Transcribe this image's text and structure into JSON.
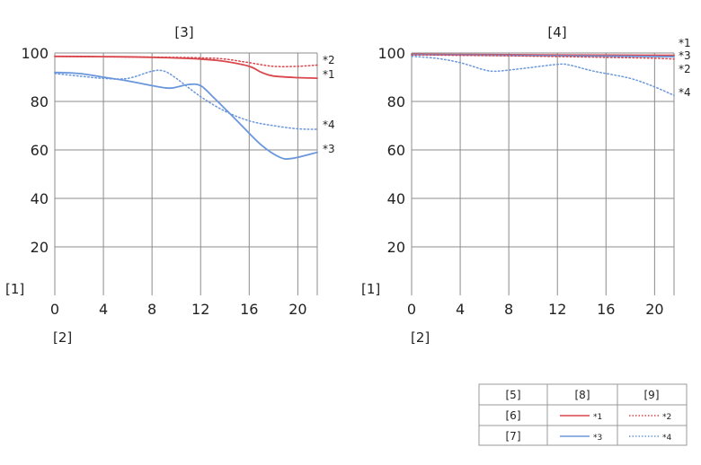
{
  "chart_data": [
    {
      "type": "line",
      "title": "[3]",
      "ylabel": "[1]",
      "xlabel": "[2]",
      "xlim": [
        0,
        21.6
      ],
      "ylim": [
        0,
        100
      ],
      "x_ticks": [
        "0",
        "4",
        "8",
        "12",
        "16",
        "20"
      ],
      "y_ticks": [
        "20",
        "40",
        "60",
        "80",
        "100"
      ],
      "grid": true,
      "series": [
        {
          "name": "*2",
          "color": "#d9474d",
          "style": "dotted",
          "points": [
            [
              0,
              98.6
            ],
            [
              4,
              98.4
            ],
            [
              8,
              98.3
            ],
            [
              12,
              98
            ],
            [
              14,
              97.5
            ],
            [
              16,
              96
            ],
            [
              18,
              94.5
            ],
            [
              20,
              94.5
            ],
            [
              21.6,
              95
            ]
          ]
        },
        {
          "name": "*1",
          "color": "#d9474d",
          "style": "solid",
          "points": [
            [
              0,
              98.6
            ],
            [
              4,
              98.5
            ],
            [
              8,
              98.2
            ],
            [
              12,
              97.5
            ],
            [
              14,
              96.5
            ],
            [
              16,
              94.5
            ],
            [
              17,
              92
            ],
            [
              18,
              90.5
            ],
            [
              20,
              89.8
            ],
            [
              21.6,
              89.6
            ]
          ]
        },
        {
          "name": "*4",
          "color": "#6a97dc",
          "style": "dotted",
          "points": [
            [
              0,
              91.5
            ],
            [
              2,
              90.5
            ],
            [
              4,
              89.5
            ],
            [
              6,
              89.5
            ],
            [
              8,
              92.5
            ],
            [
              9,
              92.5
            ],
            [
              10,
              89.5
            ],
            [
              12,
              82
            ],
            [
              14,
              76
            ],
            [
              16,
              72
            ],
            [
              18,
              70
            ],
            [
              20,
              68.7
            ],
            [
              21.6,
              68.5
            ]
          ]
        },
        {
          "name": "*3",
          "color": "#6a97dc",
          "style": "solid",
          "points": [
            [
              0,
              92
            ],
            [
              2,
              91.5
            ],
            [
              4,
              90
            ],
            [
              6,
              88.5
            ],
            [
              8,
              86.5
            ],
            [
              9.5,
              85.5
            ],
            [
              11,
              87
            ],
            [
              12,
              86.5
            ],
            [
              13,
              82
            ],
            [
              15,
              72
            ],
            [
              17,
              62
            ],
            [
              18.5,
              57
            ],
            [
              19.5,
              56.5
            ],
            [
              21.6,
              59
            ]
          ]
        }
      ],
      "series_end_labels": [
        "*2",
        "*1",
        "*4",
        "*3"
      ]
    },
    {
      "type": "line",
      "title": "[4]",
      "ylabel": "[1]",
      "xlabel": "[2]",
      "xlim": [
        0,
        21.6
      ],
      "ylim": [
        0,
        100
      ],
      "x_ticks": [
        "0",
        "4",
        "8",
        "12",
        "16",
        "20"
      ],
      "y_ticks": [
        "20",
        "40",
        "60",
        "80",
        "100"
      ],
      "grid": true,
      "series": [
        {
          "name": "*1",
          "color": "#d9474d",
          "style": "solid",
          "points": [
            [
              0,
              99.5
            ],
            [
              8,
              99.3
            ],
            [
              16,
              99.1
            ],
            [
              21.6,
              99
            ]
          ]
        },
        {
          "name": "*3",
          "color": "#6a97dc",
          "style": "solid",
          "points": [
            [
              0,
              99.3
            ],
            [
              8,
              99
            ],
            [
              16,
              98.7
            ],
            [
              21.6,
              98.5
            ]
          ]
        },
        {
          "name": "*2",
          "color": "#d9474d",
          "style": "dotted",
          "points": [
            [
              0,
              99.2
            ],
            [
              8,
              98.8
            ],
            [
              16,
              98.2
            ],
            [
              20,
              97.8
            ],
            [
              21.6,
              97.5
            ]
          ]
        },
        {
          "name": "*4",
          "color": "#6a97dc",
          "style": "dotted",
          "points": [
            [
              0,
              98.6
            ],
            [
              2,
              97.8
            ],
            [
              4,
              96
            ],
            [
              6,
              93
            ],
            [
              7,
              92.5
            ],
            [
              9,
              93.5
            ],
            [
              12,
              95.3
            ],
            [
              13,
              95
            ],
            [
              15,
              92.5
            ],
            [
              18,
              89.5
            ],
            [
              20,
              86
            ],
            [
              21.6,
              82.5
            ]
          ]
        }
      ],
      "series_end_labels": [
        "*1",
        "*3",
        "*2",
        "*4"
      ]
    }
  ],
  "legend_table": {
    "header": [
      "[5]",
      "[8]",
      "[9]"
    ],
    "row1": {
      "label": "[6]",
      "solid_label": "*1",
      "dotted_label": "*2",
      "color": "#d9474d"
    },
    "row2": {
      "label": "[7]",
      "solid_label": "*3",
      "dotted_label": "*4",
      "color": "#6a97dc"
    }
  }
}
